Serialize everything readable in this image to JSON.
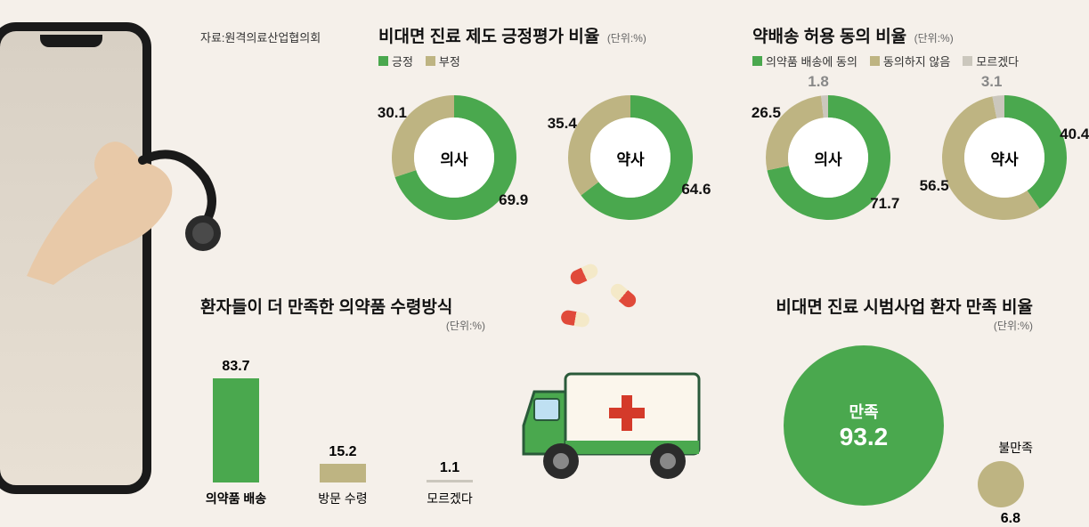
{
  "colors": {
    "green": "#4aa84e",
    "beige": "#beb482",
    "gray": "#cbc7bd",
    "bg": "#f5f0ea",
    "text": "#111111"
  },
  "source": "자료:원격의료산업협의회",
  "chartA": {
    "title": "비대면 진료 제도 긍정평가 비율",
    "unit": "(단위:%)",
    "legend": [
      {
        "label": "긍정",
        "color": "#4aa84e"
      },
      {
        "label": "부정",
        "color": "#beb482"
      }
    ],
    "donuts": [
      {
        "center": "의사",
        "slices": [
          {
            "value": 69.9,
            "color": "#4aa84e"
          },
          {
            "value": 30.1,
            "color": "#beb482"
          }
        ]
      },
      {
        "center": "약사",
        "slices": [
          {
            "value": 64.6,
            "color": "#4aa84e"
          },
          {
            "value": 35.4,
            "color": "#beb482"
          }
        ]
      }
    ]
  },
  "chartB": {
    "title": "약배송 허용 동의 비율",
    "unit": "(단위:%)",
    "legend": [
      {
        "label": "의약품 배송에 동의",
        "color": "#4aa84e"
      },
      {
        "label": "동의하지 않음",
        "color": "#beb482"
      },
      {
        "label": "모르겠다",
        "color": "#cbc7bd"
      }
    ],
    "donuts": [
      {
        "center": "의사",
        "slices": [
          {
            "value": 71.7,
            "color": "#4aa84e"
          },
          {
            "value": 26.5,
            "color": "#beb482"
          },
          {
            "value": 1.8,
            "color": "#cbc7bd"
          }
        ]
      },
      {
        "center": "약사",
        "slices": [
          {
            "value": 40.4,
            "color": "#4aa84e"
          },
          {
            "value": 56.5,
            "color": "#beb482"
          },
          {
            "value": 3.1,
            "color": "#cbc7bd"
          }
        ]
      }
    ]
  },
  "chartC": {
    "title": "환자들이 더 만족한 의약품 수령방식",
    "unit": "(단위:%)",
    "max": 100,
    "bars": [
      {
        "label": "의약품 배송",
        "value": 83.7,
        "color": "#4aa84e",
        "bold": true
      },
      {
        "label": "방문 수령",
        "value": 15.2,
        "color": "#beb482",
        "bold": false
      },
      {
        "label": "모르겠다",
        "value": 1.1,
        "color": "#cbc7bd",
        "bold": false
      }
    ]
  },
  "chartD": {
    "title": "비대면 진료 시범사업 환자 만족 비율",
    "unit": "(단위:%)",
    "big": {
      "label": "만족",
      "value": 93.2,
      "color": "#4aa84e"
    },
    "small": {
      "label": "불만족",
      "value": 6.8,
      "color": "#beb482"
    }
  }
}
